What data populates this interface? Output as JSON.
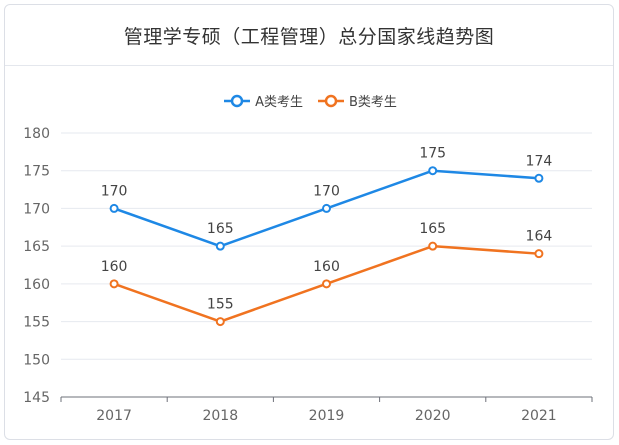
{
  "title": "管理学专硕（工程管理）总分国家线趋势图",
  "chart_data": {
    "type": "line",
    "categories": [
      "2017",
      "2018",
      "2019",
      "2020",
      "2021"
    ],
    "series": [
      {
        "name": "A类考生",
        "values": [
          170,
          165,
          170,
          175,
          174
        ],
        "color": "#1e88e5"
      },
      {
        "name": "B类考生",
        "values": [
          160,
          155,
          160,
          165,
          164
        ],
        "color": "#f07320"
      }
    ],
    "ylim": [
      145,
      180
    ],
    "yticks": [
      145,
      150,
      155,
      160,
      165,
      170,
      175,
      180
    ],
    "grid": true,
    "legend": "top-center",
    "data_labels": true
  }
}
